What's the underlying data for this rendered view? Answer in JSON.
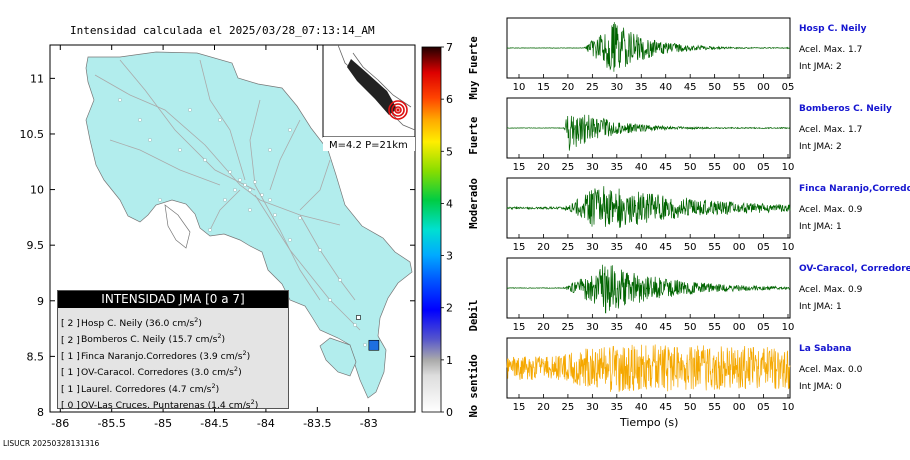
{
  "header": {
    "title": "Intensidad calculada el 2025/03/28_07:13:14_AM",
    "footer_id": "LISUCR 20250328131316"
  },
  "map": {
    "x_ticks": [
      -86,
      -85.5,
      -85,
      -84.5,
      -84,
      -83.5,
      -83
    ],
    "y_ticks": [
      8,
      8.5,
      9,
      9.5,
      10,
      10.5,
      11
    ],
    "x_tick_labels": [
      "-86",
      "-85.5",
      "-85",
      "-84.5",
      "-84",
      "-83.5",
      "-83"
    ],
    "y_tick_labels": [
      "8",
      "8.5",
      "9",
      "9.5",
      "10",
      "10.5",
      "11"
    ],
    "xlim": [
      -86.1,
      -82.55
    ],
    "ylim": [
      8,
      11.3
    ],
    "land_color": "#b2eded",
    "inset_label": "M=4.2  P=21km",
    "epicenter": {
      "lon": -82.95,
      "lat": 8.6,
      "intensity": 1
    },
    "station_marker": {
      "lon": -83.1,
      "lat": 8.85
    }
  },
  "legend": {
    "title": "INTENSIDAD JMA [0 a 7]",
    "entries": [
      {
        "level": "[ 2 ]",
        "text": "Hosp C. Neily (36.0 cm/s",
        "sup": "2",
        "close": ")"
      },
      {
        "level": "[ 2 ]",
        "text": "Bomberos C. Neily (15.7 cm/s",
        "sup": "2",
        "close": ")"
      },
      {
        "level": "[ 1 ]",
        "text": "Finca Naranjo.Corredores (3.9 cm/s",
        "sup": "2",
        "close": ")"
      },
      {
        "level": "[ 1 ]",
        "text": "OV-Caracol. Corredores (3.0 cm/s",
        "sup": "2",
        "close": ")"
      },
      {
        "level": "[ 1 ]",
        "text": "Laurel. Corredores (4.7 cm/s",
        "sup": "2",
        "close": ")"
      },
      {
        "level": "[ 0 ]",
        "text": "OV-Las Cruces. Puntarenas (1.4 cm/s",
        "sup": "2",
        "close": ")"
      }
    ]
  },
  "colorbar": {
    "ticks": [
      "0",
      "1",
      "2",
      "3",
      "4",
      "5",
      "6",
      "7"
    ],
    "labels": [
      "No sentido",
      "Debil",
      "Moderado",
      "Fuerte",
      "Muy Fuerte"
    ],
    "label_levels": [
      0.5,
      1.85,
      4,
      5.3,
      6.6
    ]
  },
  "waveforms": {
    "xlabel": "Tiempo (s)",
    "stations": [
      {
        "name": "Hosp C. Neily",
        "acel": "Acel. Max. 1.7",
        "int": "Int JMA: 2",
        "color": "#006400",
        "ticks": [
          "10",
          "15",
          "20",
          "25",
          "30",
          "35",
          "40",
          "45",
          "50",
          "55",
          "00",
          "05"
        ],
        "onset": 0.27,
        "peak": 0.38,
        "amp": 1.0,
        "decay": 0.12,
        "noise": 0.02,
        "base": "#1a8a1a"
      },
      {
        "name": "Bomberos C. Neily",
        "acel": "Acel. Max. 1.7",
        "int": "Int JMA: 2",
        "color": "#006400",
        "ticks": [
          "15",
          "20",
          "25",
          "30",
          "35",
          "40",
          "45",
          "50",
          "55",
          "00",
          "05",
          "10"
        ],
        "onset": 0.2,
        "peak": 0.22,
        "amp": 0.85,
        "decay": 0.14,
        "noise": 0.02,
        "base": "#1a8a1a"
      },
      {
        "name": "Finca Naranjo,Corredores",
        "acel": "Acel. Max. 0.9",
        "int": "Int JMA: 1",
        "color": "#006400",
        "ticks": [
          "15",
          "20",
          "25",
          "30",
          "35",
          "40",
          "45",
          "50",
          "55",
          "00",
          "05",
          "10"
        ],
        "onset": 0.2,
        "peak": 0.33,
        "amp": 0.9,
        "decay": 0.35,
        "noise": 0.1,
        "base": "#1a8a1a"
      },
      {
        "name": "OV-Caracol, Corredores",
        "acel": "Acel. Max. 0.9",
        "int": "Int JMA: 1",
        "color": "#006400",
        "ticks": [
          "15",
          "20",
          "25",
          "30",
          "35",
          "40",
          "45",
          "50",
          "55",
          "00",
          "05",
          "10"
        ],
        "onset": 0.2,
        "peak": 0.35,
        "amp": 0.95,
        "decay": 0.22,
        "noise": 0.03,
        "base": "#1a8a1a"
      },
      {
        "name": "La Sabana",
        "acel": "Acel. Max. 0.0",
        "int": "Int JMA: 0",
        "color": "#f5a800",
        "ticks": [
          "15",
          "20",
          "25",
          "30",
          "35",
          "40",
          "45",
          "50",
          "55",
          "00",
          "05",
          "10"
        ],
        "onset": 0.0,
        "peak": 0.35,
        "amp": 0.9,
        "decay": 5,
        "noise": 0.45,
        "base": "#f5a800"
      }
    ]
  }
}
